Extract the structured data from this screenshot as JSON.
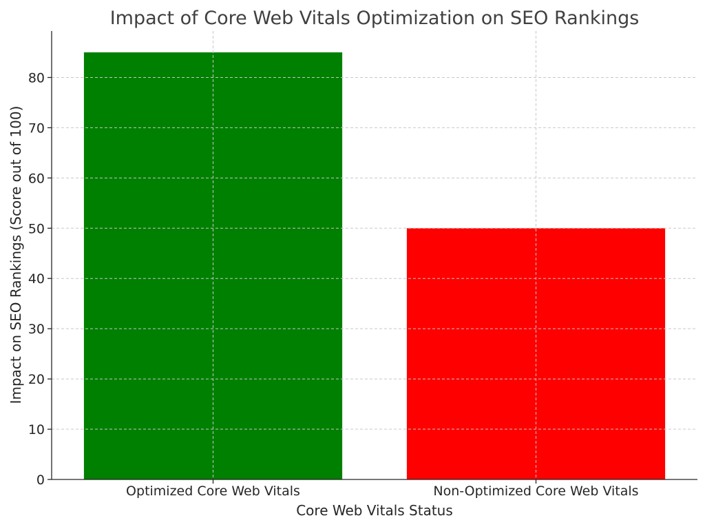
{
  "chart_data": {
    "type": "bar",
    "title": "Impact of Core Web Vitals Optimization on SEO Rankings",
    "xlabel": "Core Web Vitals Status",
    "ylabel": "Impact on SEO Rankings (Score out of 100)",
    "categories": [
      "Optimized Core Web Vitals",
      "Non-Optimized Core Web Vitals"
    ],
    "values": [
      85,
      50
    ],
    "colors": [
      "#008000",
      "#ff0000"
    ],
    "ylim": [
      0,
      89.25
    ],
    "yticks": [
      0,
      10,
      20,
      30,
      40,
      50,
      60,
      70,
      80
    ],
    "grid": true
  }
}
